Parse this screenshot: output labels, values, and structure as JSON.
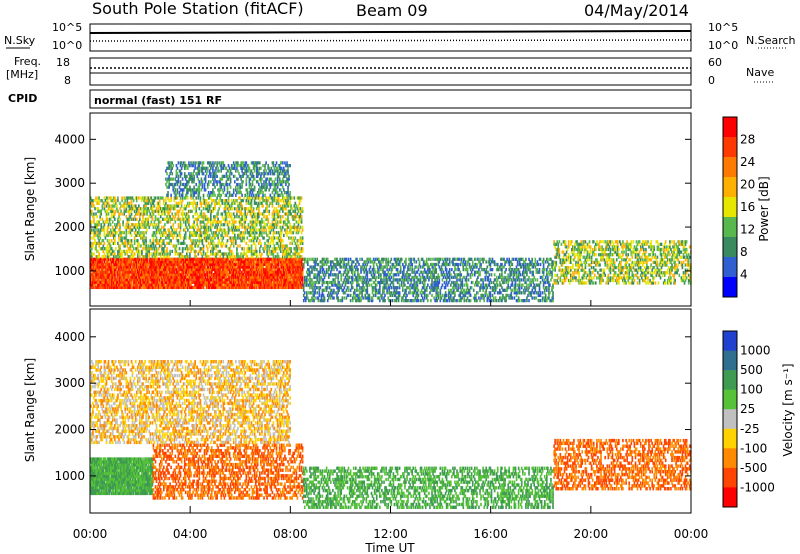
{
  "header": {
    "station": "South Pole Station (fitACF)",
    "beam": "Beam 09",
    "date": "04/May/2014"
  },
  "summary_panels": {
    "nsky_label": "N.Sky",
    "nsearch_label": "N.Search",
    "nsky_ticks": [
      "10^5",
      "10^0"
    ],
    "freq_label_top": "Freq.",
    "freq_label_unit": "[MHz]",
    "freq_ticks": [
      "18",
      "8"
    ],
    "nave_label": "Nave",
    "nave_ticks": [
      "60",
      "0"
    ],
    "cpid_label": "CPID",
    "cpid_text": "normal (fast) 151 RF"
  },
  "colors": {
    "power": [
      "#0000ff",
      "#2f5fd0",
      "#3a8a5f",
      "#58b84d",
      "#e6e600",
      "#ffb000",
      "#ff7a00",
      "#ff3a00",
      "#ff0000"
    ],
    "velocity": [
      "#ff0000",
      "#ff4500",
      "#ff8a00",
      "#ffd200",
      "#c0c0c0",
      "#55c238",
      "#3f9a52",
      "#2f6f8f",
      "#2040d0"
    ]
  },
  "chart_data": [
    {
      "type": "heatmap",
      "name": "power",
      "xlabel": "",
      "ylabel": "Slant Range [km]",
      "x_range": [
        "00:00",
        "24:00"
      ],
      "y_range": [
        200,
        4600
      ],
      "yticks": [
        "1000",
        "2000",
        "3000",
        "4000"
      ],
      "colorbar": {
        "title": "Power [dB]",
        "ticks": [
          "4",
          "8",
          "12",
          "16",
          "20",
          "24",
          "28"
        ]
      },
      "regions": [
        {
          "t0": 0.0,
          "t1": 8.5,
          "r0": 600,
          "r1": 1300,
          "value": "high"
        },
        {
          "t0": 0.0,
          "t1": 8.5,
          "r0": 1300,
          "r1": 2700,
          "value": "mid"
        },
        {
          "t0": 3.0,
          "t1": 8.0,
          "r0": 2700,
          "r1": 3500,
          "value": "low"
        },
        {
          "t0": 8.5,
          "t1": 18.5,
          "r0": 300,
          "r1": 1300,
          "value": "low"
        },
        {
          "t0": 18.5,
          "t1": 24.0,
          "r0": 700,
          "r1": 1700,
          "value": "mid"
        }
      ]
    },
    {
      "type": "heatmap",
      "name": "velocity",
      "xlabel": "Time UT",
      "ylabel": "Slant Range [km]",
      "x_range": [
        "00:00",
        "24:00"
      ],
      "y_range": [
        200,
        4600
      ],
      "yticks": [
        "1000",
        "2000",
        "3000",
        "4000"
      ],
      "xticks": [
        "00:00",
        "04:00",
        "08:00",
        "12:00",
        "16:00",
        "20:00",
        "00:00"
      ],
      "colorbar": {
        "title": "Velocity [m s⁻¹]",
        "ticks": [
          "1000",
          "500",
          "100",
          "25",
          "-25",
          "-100",
          "-500",
          "-1000"
        ]
      },
      "regions": [
        {
          "t0": 0.0,
          "t1": 2.5,
          "r0": 600,
          "r1": 1400,
          "value": "toward"
        },
        {
          "t0": 2.5,
          "t1": 8.5,
          "r0": 500,
          "r1": 1700,
          "value": "away"
        },
        {
          "t0": 0.0,
          "t1": 8.0,
          "r0": 1700,
          "r1": 3500,
          "value": "away-weak"
        },
        {
          "t0": 8.5,
          "t1": 18.5,
          "r0": 300,
          "r1": 1200,
          "value": "toward-weak"
        },
        {
          "t0": 18.5,
          "t1": 24.0,
          "r0": 700,
          "r1": 1800,
          "value": "away"
        }
      ]
    }
  ]
}
